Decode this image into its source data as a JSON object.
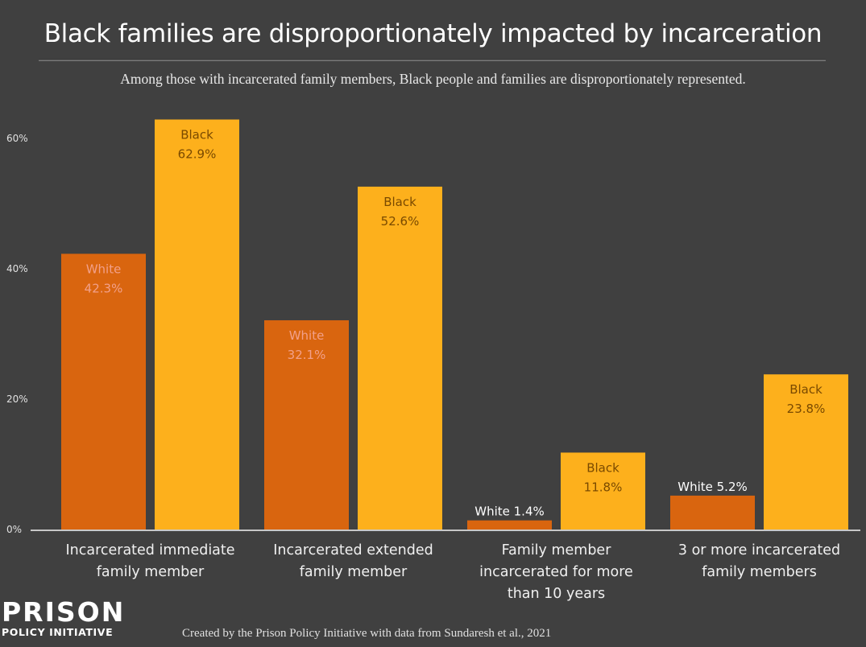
{
  "header": {
    "title": "Black families are disproportionately impacted by incarceration",
    "subtitle": "Among those with incarcerated family members, Black people and families are disproportionately represented."
  },
  "footer": {
    "credit": "Created by the Prison Policy Initiative with data from Sundaresh et al., 2021",
    "logo_top": "PRISON",
    "logo_bottom": "POLICY INITIATIVE"
  },
  "colors": {
    "background": "#404040",
    "white_series": "#d9650f",
    "black_series": "#fdb01c",
    "white_label_text": "#f2a08a",
    "black_label_text": "#7a4a00"
  },
  "chart_data": {
    "type": "bar",
    "title": "Black families are disproportionately impacted by incarceration",
    "subtitle": "Among those with incarcerated family members, Black people and families are disproportionately represented.",
    "xlabel": "",
    "ylabel": "",
    "ylim": [
      0,
      60
    ],
    "yticks": [
      0,
      20,
      40,
      60
    ],
    "ytick_labels": [
      "0%",
      "20%",
      "40%",
      "60%"
    ],
    "grid": false,
    "legend": "none (inline bar labels)",
    "categories": [
      [
        "Incarcerated immediate",
        "family member"
      ],
      [
        "Incarcerated extended",
        "family member"
      ],
      [
        "Family member",
        "incarcerated for more",
        "than 10 years"
      ],
      [
        "3 or more incarcerated",
        "family members"
      ]
    ],
    "series": [
      {
        "name": "White",
        "values": [
          42.3,
          32.1,
          1.4,
          5.2
        ],
        "labels": [
          "White 42.3%",
          "White 32.1%",
          "White 1.4%",
          "White 5.2%"
        ]
      },
      {
        "name": "Black",
        "values": [
          62.9,
          52.6,
          11.8,
          23.8
        ],
        "labels": [
          "Black 62.9%",
          "Black 52.6%",
          "Black 11.8%",
          "Black 23.8%"
        ]
      }
    ]
  }
}
